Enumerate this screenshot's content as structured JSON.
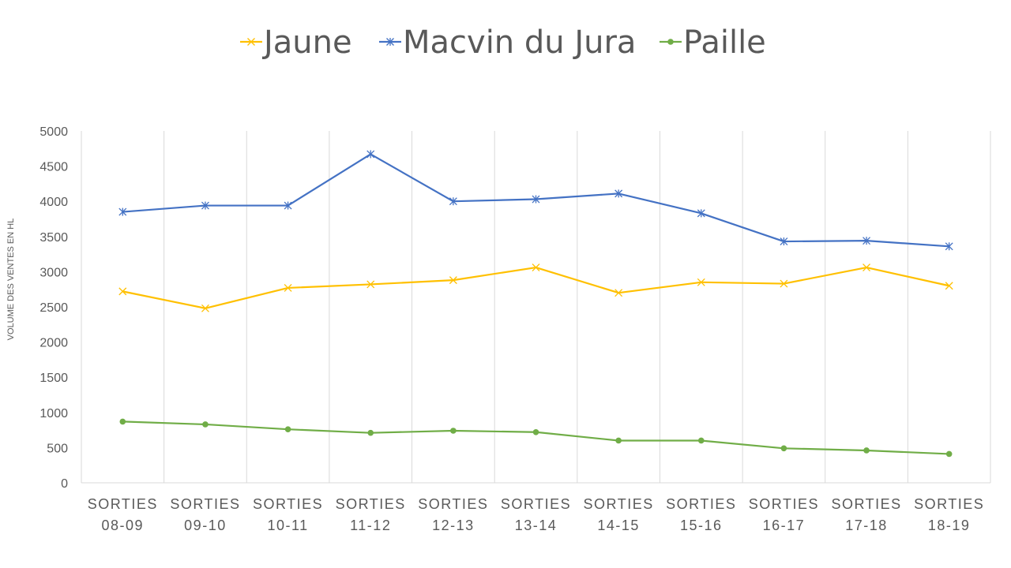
{
  "chart_data": {
    "type": "line",
    "title": "",
    "xlabel": "",
    "ylabel": "VOLUME DES VENTES EN HL",
    "ylim": [
      0,
      5000
    ],
    "y_ticks": [
      0,
      500,
      1000,
      1500,
      2000,
      2500,
      3000,
      3500,
      4000,
      4500,
      5000
    ],
    "grid": "vertical",
    "legend_position": "top",
    "categories": [
      [
        "SORTIES",
        "08-09"
      ],
      [
        "SORTIES",
        "09-10"
      ],
      [
        "SORTIES",
        "10-11"
      ],
      [
        "SORTIES",
        "11-12"
      ],
      [
        "SORTIES",
        "12-13"
      ],
      [
        "SORTIES",
        "13-14"
      ],
      [
        "SORTIES",
        "14-15"
      ],
      [
        "SORTIES",
        "15-16"
      ],
      [
        "SORTIES",
        "16-17"
      ],
      [
        "SORTIES",
        "17-18"
      ],
      [
        "SORTIES",
        "18-19"
      ]
    ],
    "series": [
      {
        "name": "Jaune",
        "color": "#FFC000",
        "marker": "x",
        "values": [
          2720,
          2480,
          2770,
          2820,
          2880,
          3060,
          2700,
          2850,
          2830,
          3060,
          2800
        ]
      },
      {
        "name": "Macvin du Jura",
        "color": "#4472C4",
        "marker": "star",
        "values": [
          3850,
          3940,
          3940,
          4670,
          4000,
          4030,
          4110,
          3830,
          3430,
          3440,
          3360
        ]
      },
      {
        "name": "Paille",
        "color": "#70AD47",
        "marker": "circle",
        "values": [
          870,
          830,
          760,
          710,
          740,
          720,
          600,
          600,
          490,
          460,
          410
        ]
      }
    ]
  }
}
